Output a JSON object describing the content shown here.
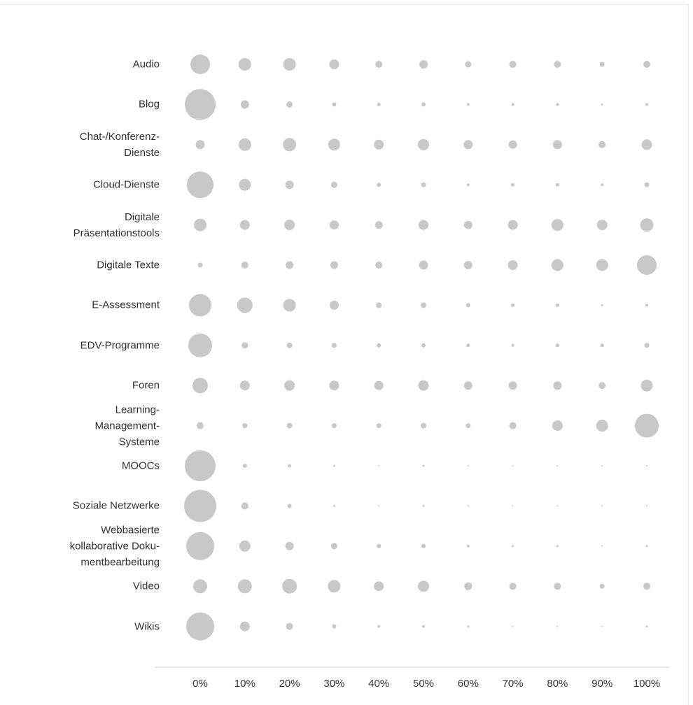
{
  "chart_data": {
    "type": "bubble",
    "x": [
      0,
      10,
      20,
      30,
      40,
      50,
      60,
      70,
      80,
      90,
      100
    ],
    "xlim": [
      0,
      100
    ],
    "xticks": [
      {
        "value": 0,
        "label": "0%"
      },
      {
        "value": 10,
        "label": "10%"
      },
      {
        "value": 20,
        "label": "20%"
      },
      {
        "value": 30,
        "label": "30%"
      },
      {
        "value": 40,
        "label": "40%"
      },
      {
        "value": 50,
        "label": "50%"
      },
      {
        "value": 60,
        "label": "60%"
      },
      {
        "value": 70,
        "label": "70%"
      },
      {
        "value": 80,
        "label": "80%"
      },
      {
        "value": 90,
        "label": "90%"
      },
      {
        "value": 100,
        "label": "100%"
      }
    ],
    "color": "#c8c8c8",
    "series": [
      {
        "name": "Audio",
        "values": [
          14,
          9,
          9,
          7,
          5,
          6,
          4.5,
          5,
          5,
          3.5,
          5
        ]
      },
      {
        "name": "Blog",
        "values": [
          22,
          6,
          4.5,
          3,
          2.5,
          3,
          2,
          2,
          2,
          1.5,
          2
        ]
      },
      {
        "name": "Chat-/Konferenz-\nDienste",
        "values": [
          6.5,
          9,
          9.5,
          8.5,
          7,
          8,
          6.5,
          6,
          6.5,
          5,
          7.5
        ]
      },
      {
        "name": "Cloud-Dienste",
        "values": [
          19,
          8.5,
          6,
          4.5,
          3,
          3.5,
          2,
          2.5,
          2.5,
          2,
          3.5
        ]
      },
      {
        "name": "Digitale\nPräsentationstools",
        "values": [
          9,
          7,
          7.5,
          6.5,
          5.5,
          7,
          6,
          7,
          8.5,
          7.5,
          9.5
        ]
      },
      {
        "name": "Digitale Texte",
        "values": [
          3.5,
          5,
          5.5,
          5.5,
          5,
          6.5,
          6,
          7,
          8.5,
          8.5,
          14
        ]
      },
      {
        "name": "E-Assessment",
        "values": [
          16,
          11,
          9,
          6.5,
          4,
          4,
          3,
          2.5,
          2.5,
          1.5,
          2
        ]
      },
      {
        "name": "EDV-Programme",
        "values": [
          17,
          4.5,
          4,
          3.5,
          3,
          3,
          2.5,
          2,
          2.5,
          2.5,
          3.5
        ]
      },
      {
        "name": "Foren",
        "values": [
          11,
          7,
          7.5,
          7,
          6.5,
          7.5,
          6,
          6,
          6,
          5,
          8.5
        ]
      },
      {
        "name": "Learning-\nManagement-\nSysteme",
        "values": [
          5,
          3.5,
          4,
          3.5,
          3.5,
          4,
          3.5,
          5,
          7.5,
          8.5,
          17
        ]
      },
      {
        "name": "MOOCs",
        "values": [
          22,
          3,
          2.5,
          1.5,
          1,
          1.5,
          1,
          1,
          1,
          1,
          1
        ]
      },
      {
        "name": "Soziale Netzwerke",
        "values": [
          23,
          5,
          3,
          1.5,
          1,
          1.5,
          1,
          1,
          1,
          1,
          1
        ]
      },
      {
        "name": "Webbasierte\nkollaborative Doku-\nmentbearbeitung",
        "values": [
          20,
          8,
          6,
          4.5,
          3,
          3,
          2,
          1.5,
          1.5,
          1,
          1.5
        ]
      },
      {
        "name": "Video",
        "values": [
          10,
          10,
          10.5,
          9,
          7,
          8,
          5.5,
          5,
          5,
          3.5,
          5
        ]
      },
      {
        "name": "Wikis",
        "values": [
          20,
          7,
          5,
          3,
          2,
          2,
          1.5,
          1,
          1,
          1,
          1.5
        ]
      }
    ]
  }
}
